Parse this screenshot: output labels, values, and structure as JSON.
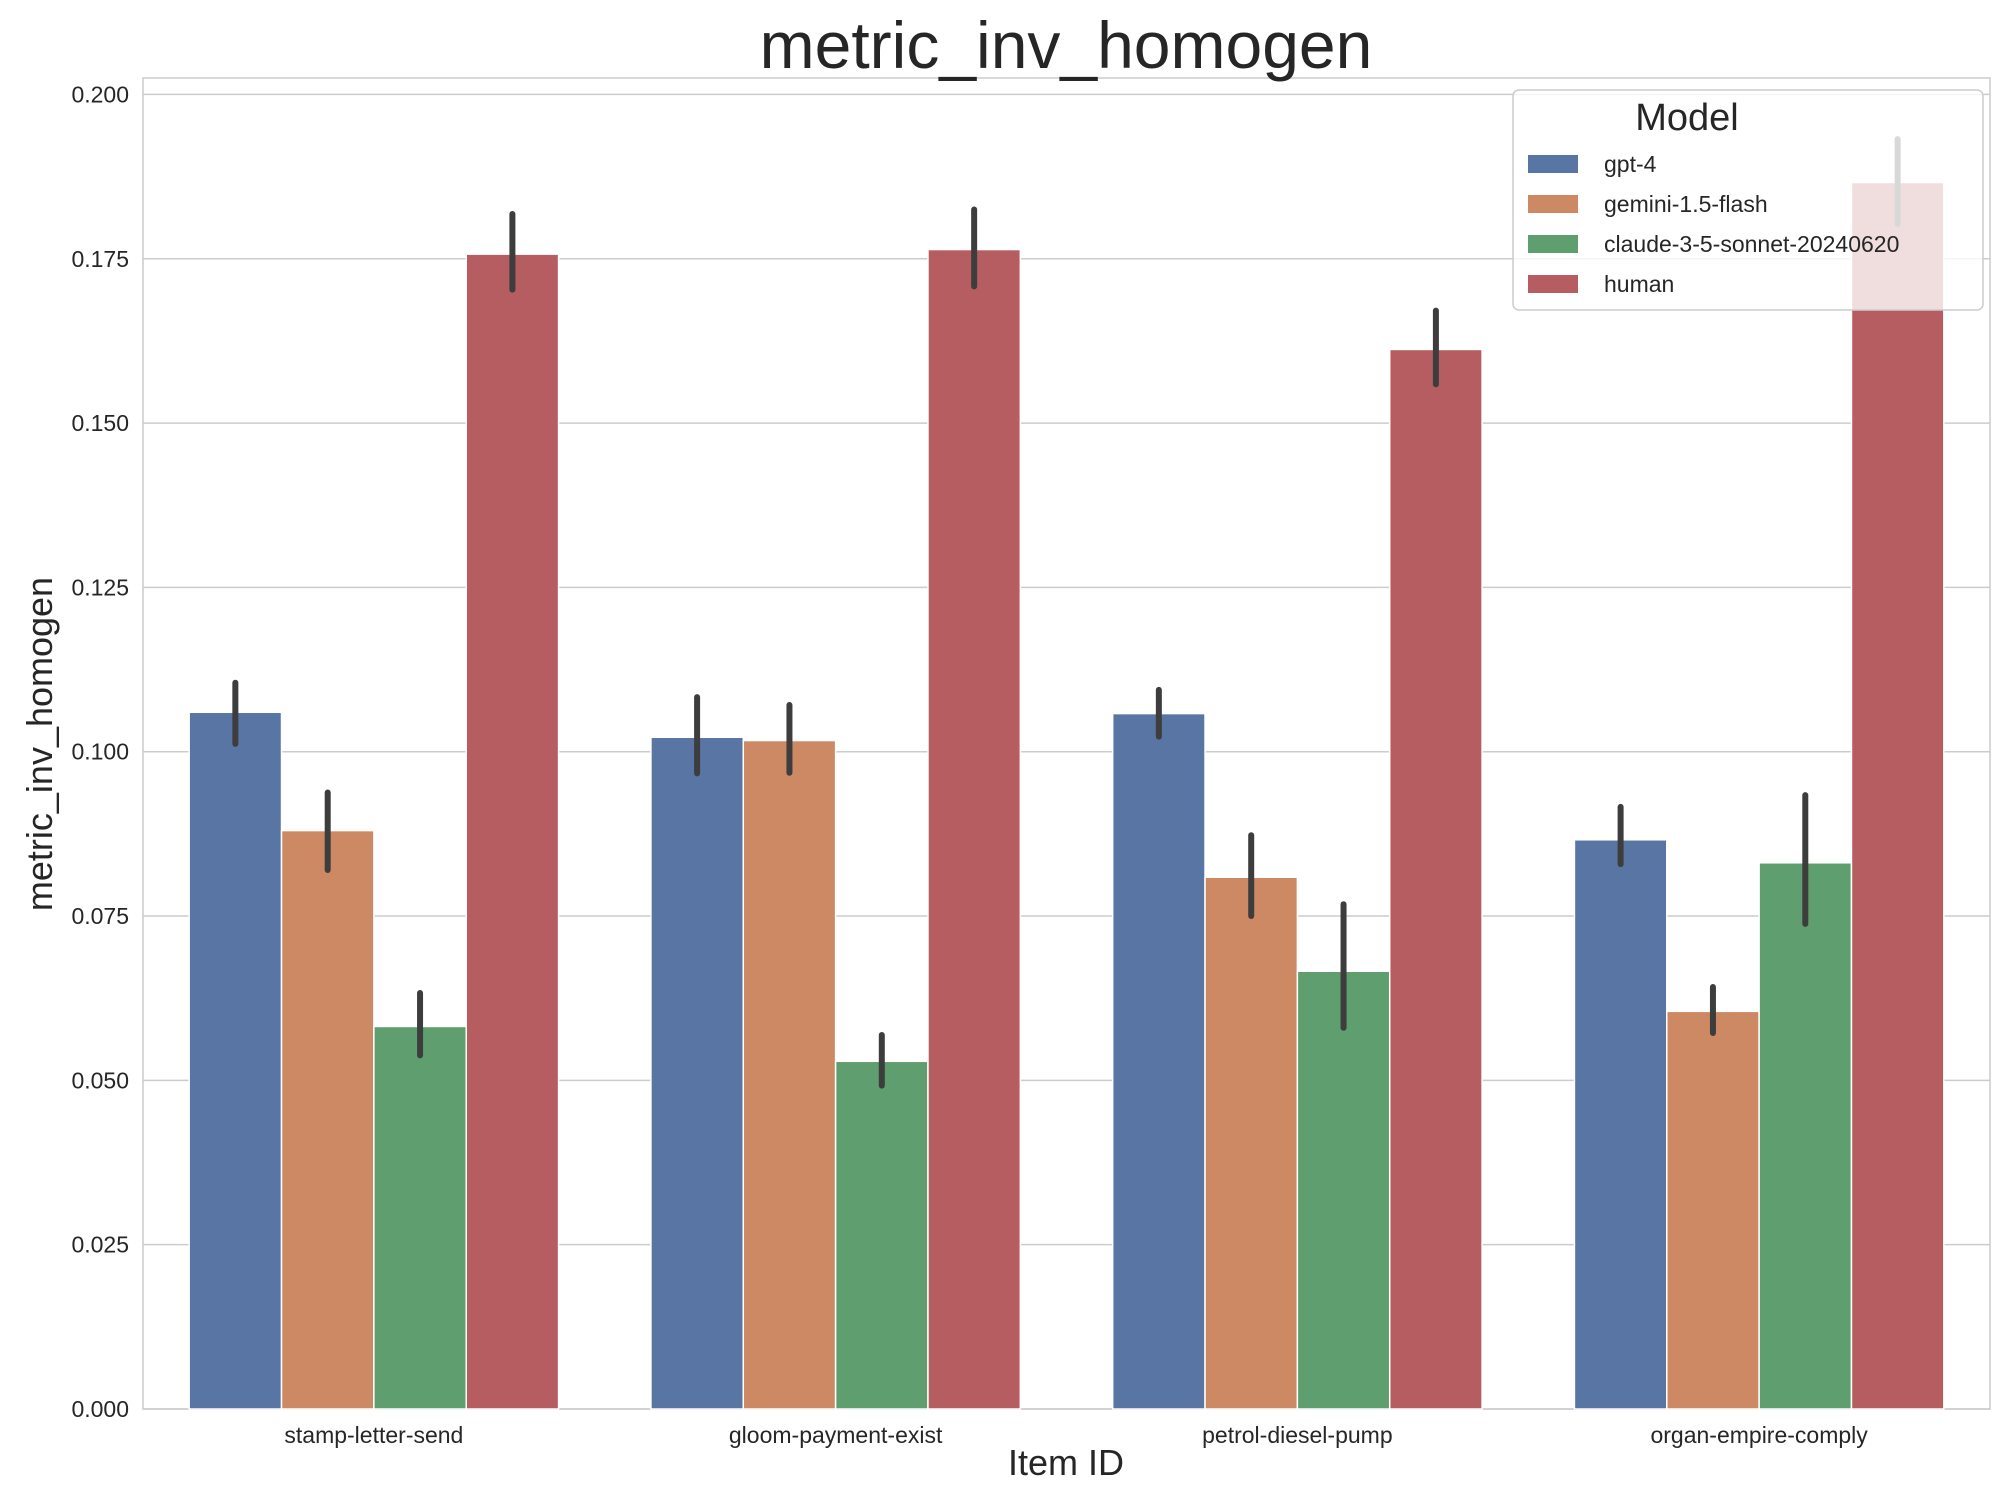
{
  "chart_data": {
    "type": "bar",
    "title": "metric_inv_homogen",
    "xlabel": "Item ID",
    "ylabel": "metric_inv_homogen",
    "ylim": [
      0,
      0.2025
    ],
    "yticks": [
      0.0,
      0.025,
      0.05,
      0.075,
      0.1,
      0.125,
      0.15,
      0.175,
      0.2
    ],
    "ytick_labels": [
      "0.000",
      "0.025",
      "0.050",
      "0.075",
      "0.100",
      "0.125",
      "0.150",
      "0.175",
      "0.200"
    ],
    "grid": true,
    "categories": [
      "stamp-letter-send",
      "gloom-payment-exist",
      "petrol-diesel-pump",
      "organ-empire-comply"
    ],
    "legend": {
      "title": "Model",
      "placement": "top-right"
    },
    "series": [
      {
        "name": "gpt-4",
        "color": "#5975a4",
        "values": [
          0.106,
          0.1022,
          0.1058,
          0.0866
        ],
        "err_low": [
          0.1012,
          0.0967,
          0.1023,
          0.0829
        ],
        "err_high": [
          0.1105,
          0.1083,
          0.1094,
          0.0916
        ]
      },
      {
        "name": "gemini-1.5-flash",
        "color": "#cc8963",
        "values": [
          0.088,
          0.1017,
          0.0809,
          0.0605
        ],
        "err_low": [
          0.082,
          0.0968,
          0.075,
          0.0572
        ],
        "err_high": [
          0.0938,
          0.1071,
          0.0873,
          0.0642
        ]
      },
      {
        "name": "claude-3-5-sonnet-20240620",
        "color": "#5f9e6e",
        "values": [
          0.0582,
          0.0529,
          0.0666,
          0.0831
        ],
        "err_low": [
          0.0538,
          0.0492,
          0.058,
          0.0738
        ],
        "err_high": [
          0.0633,
          0.0569,
          0.0768,
          0.0934
        ]
      },
      {
        "name": "human",
        "color": "#b55d60",
        "values": [
          0.1757,
          0.1764,
          0.1612,
          0.1866
        ],
        "err_low": [
          0.1703,
          0.1708,
          0.1559,
          0.1803
        ],
        "err_high": [
          0.1818,
          0.1825,
          0.1671,
          0.1932
        ]
      }
    ]
  }
}
